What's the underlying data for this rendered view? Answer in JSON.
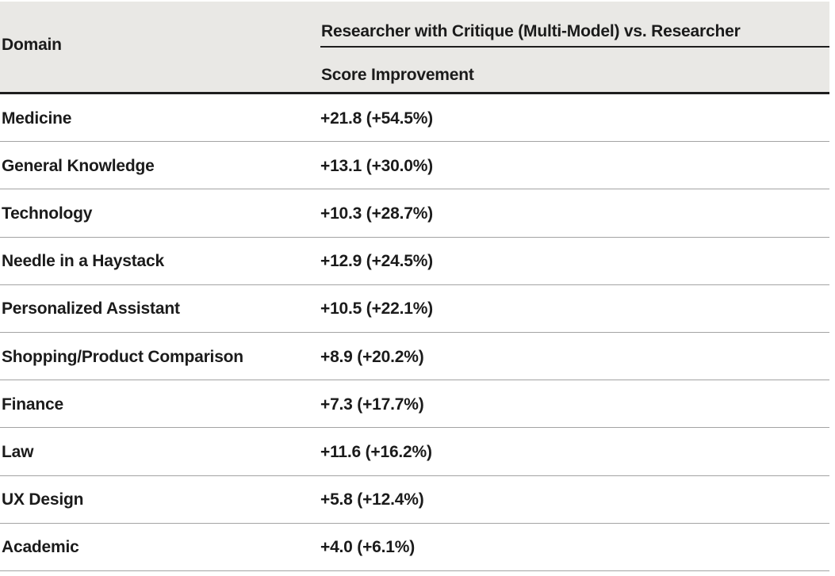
{
  "colors": {
    "header_background": "#e9e8e5",
    "text": "#1b1b1b",
    "heavy_rule": "#1e1e1e",
    "row_separator": "#a3a3a3",
    "page_background": "#ffffff"
  },
  "table": {
    "col1_header": "Domain",
    "group_header": "Researcher with Critique (Multi-Model) vs. Researcher",
    "col2_header": "Score Improvement",
    "rows": [
      {
        "domain": "Medicine",
        "improvement": "+21.8 (+54.5%)"
      },
      {
        "domain": "General Knowledge",
        "improvement": "+13.1 (+30.0%)"
      },
      {
        "domain": "Technology",
        "improvement": "+10.3 (+28.7%)"
      },
      {
        "domain": "Needle in a Haystack",
        "improvement": "+12.9 (+24.5%)"
      },
      {
        "domain": "Personalized Assistant",
        "improvement": "+10.5 (+22.1%)"
      },
      {
        "domain": "Shopping/Product Comparison",
        "improvement": "+8.9 (+20.2%)"
      },
      {
        "domain": "Finance",
        "improvement": "+7.3 (+17.7%)"
      },
      {
        "domain": "Law",
        "improvement": "+11.6 (+16.2%)"
      },
      {
        "domain": "UX Design",
        "improvement": "+5.8 (+12.4%)"
      },
      {
        "domain": "Academic",
        "improvement": "+4.0 (+6.1%)"
      }
    ]
  },
  "chart_data": {
    "type": "table",
    "title": "Researcher with Critique (Multi-Model) vs. Researcher",
    "columns": [
      "Domain",
      "Score Improvement"
    ],
    "rows": [
      [
        "Medicine",
        "+21.8 (+54.5%)"
      ],
      [
        "General Knowledge",
        "+13.1 (+30.0%)"
      ],
      [
        "Technology",
        "+10.3 (+28.7%)"
      ],
      [
        "Needle in a Haystack",
        "+12.9 (+24.5%)"
      ],
      [
        "Personalized Assistant",
        "+10.5 (+22.1%)"
      ],
      [
        "Shopping/Product Comparison",
        "+8.9 (+20.2%)"
      ],
      [
        "Finance",
        "+7.3 (+17.7%)"
      ],
      [
        "Law",
        "+11.6 (+16.2%)"
      ],
      [
        "UX Design",
        "+5.8 (+12.4%)"
      ],
      [
        "Academic",
        "+4.0 (+6.1%)"
      ]
    ],
    "score_improvement_points": [
      21.8,
      13.1,
      10.3,
      12.9,
      10.5,
      8.9,
      7.3,
      11.6,
      5.8,
      4.0
    ],
    "score_improvement_percent": [
      54.5,
      30.0,
      28.7,
      24.5,
      22.1,
      20.2,
      17.7,
      16.2,
      12.4,
      6.1
    ]
  }
}
